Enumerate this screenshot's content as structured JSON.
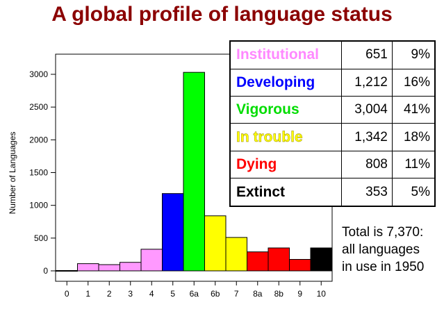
{
  "title": "A global profile of language status",
  "chart_data": {
    "type": "bar",
    "categories": [
      "0",
      "1",
      "2",
      "3",
      "4",
      "5",
      "6a",
      "6b",
      "7",
      "8a",
      "8b",
      "9",
      "10"
    ],
    "values": [
      5,
      110,
      95,
      130,
      330,
      1180,
      3030,
      840,
      510,
      290,
      350,
      175,
      350
    ],
    "colors": [
      "#ffffff",
      "#ff99ff",
      "#ff99ff",
      "#ff99ff",
      "#ff99ff",
      "#0000ff",
      "#00ff00",
      "#ffff00",
      "#ffff00",
      "#ff0000",
      "#ff0000",
      "#ff0000",
      "#000000"
    ],
    "ylabel": "Number of Languages",
    "xlabel": "",
    "ylim": [
      0,
      3000
    ],
    "yticks": [
      0,
      500,
      1000,
      1500,
      2000,
      2500,
      3000
    ],
    "grid": false
  },
  "status_table": [
    {
      "label": "Institutional",
      "count": "651",
      "percent": "9%",
      "color": "#ff88ff"
    },
    {
      "label": "Developing",
      "count": "1,212",
      "percent": "16%",
      "color": "#0000ff"
    },
    {
      "label": "Vigorous",
      "count": "3,004",
      "percent": "41%",
      "color": "#00dd00"
    },
    {
      "label": "In trouble",
      "count": "1,342",
      "percent": "18%",
      "color": "#ffff00"
    },
    {
      "label": "Dying",
      "count": "808",
      "percent": "11%",
      "color": "#ff0000"
    },
    {
      "label": "Extinct",
      "count": "353",
      "percent": "5%",
      "color": "#000000"
    }
  ],
  "total_note": [
    "Total is 7,370:",
    "all languages",
    "in use in 1950"
  ]
}
